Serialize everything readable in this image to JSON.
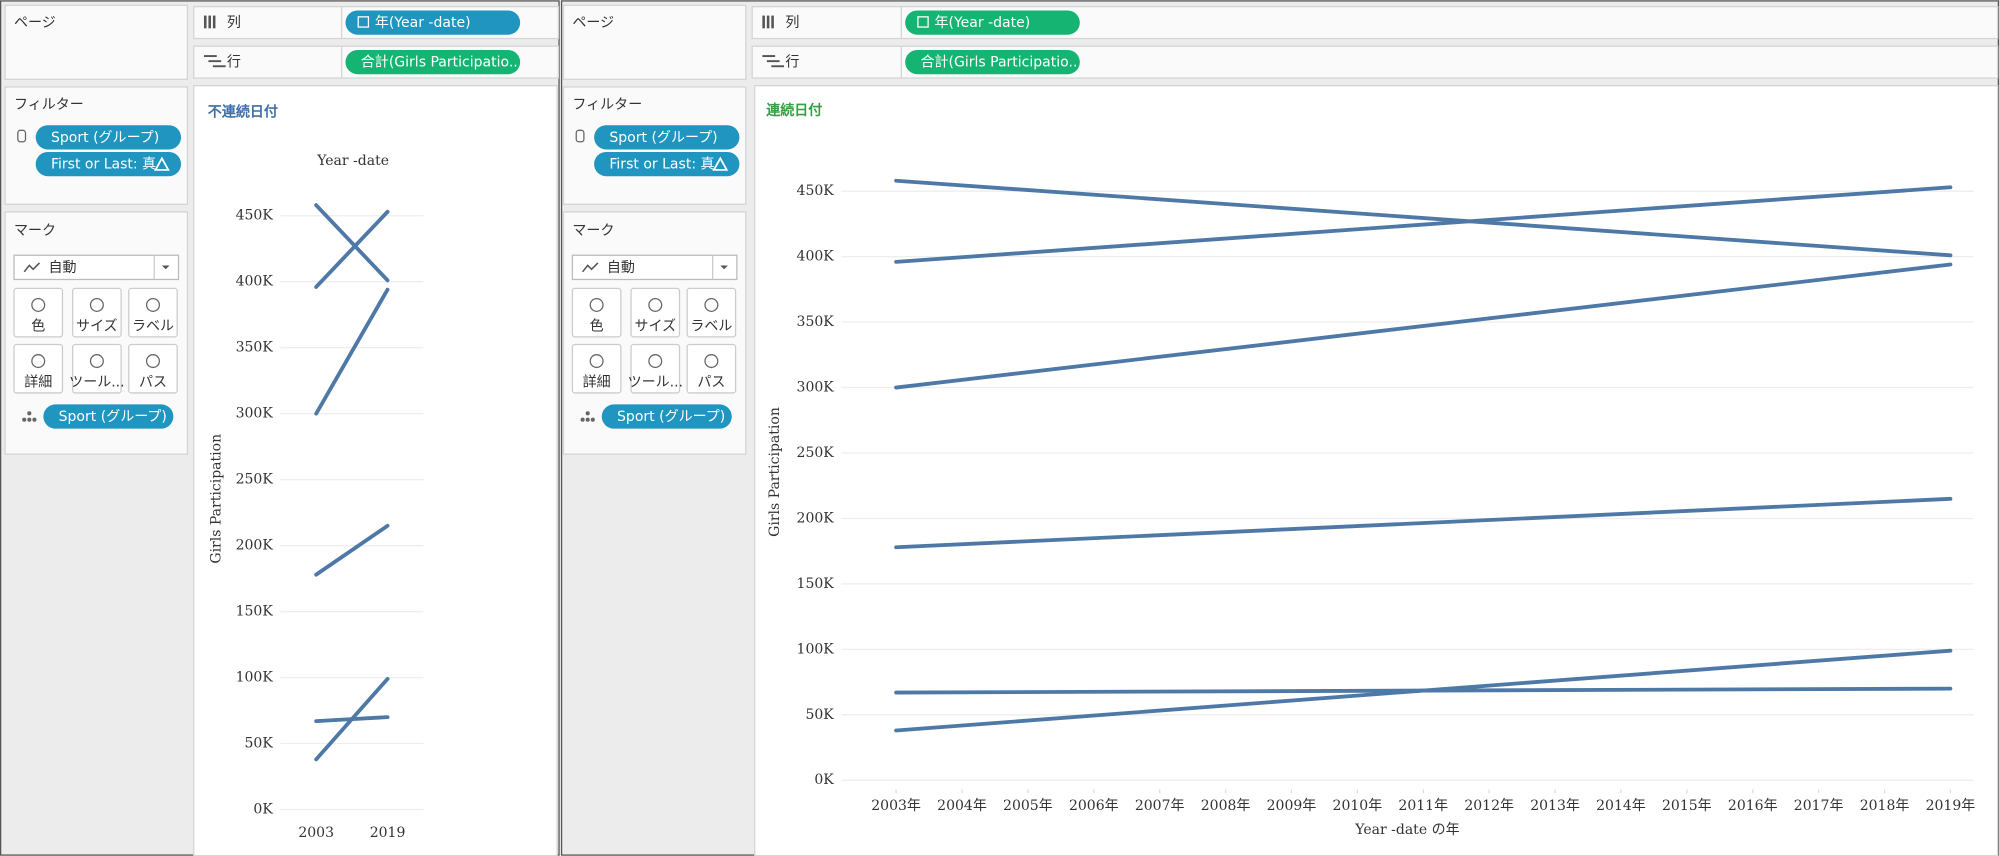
{
  "ui": {
    "panels": [
      {
        "pages": "ページ",
        "columns_label": "列",
        "column_pill": "年(Year -date)",
        "column_pill_color": "#1f95c0",
        "rows_label": "行",
        "row_pill": "合計(Girls Participatio..",
        "filters": "フィルター",
        "filter_pills": [
          "Sport (グループ)",
          "First or Last: 真"
        ],
        "marks": "マーク",
        "mark_type": "自動",
        "mark_buttons": [
          "色",
          "サイズ",
          "ラベル",
          "詳細",
          "ツール...",
          "パス"
        ],
        "detail_pill": "Sport (グループ)"
      },
      {
        "pages": "ページ",
        "columns_label": "列",
        "column_pill": "年(Year -date)",
        "column_pill_color": "#15b472",
        "rows_label": "行",
        "row_pill": "合計(Girls Participatio..",
        "filters": "フィルター",
        "filter_pills": [
          "Sport (グループ)",
          "First or Last: 真"
        ],
        "marks": "マーク",
        "mark_type": "自動",
        "mark_buttons": [
          "色",
          "サイズ",
          "ラベル",
          "詳細",
          "ツール...",
          "パス"
        ],
        "detail_pill": "Sport (グループ)"
      }
    ]
  },
  "chart_data": [
    {
      "type": "line",
      "title": "不連続日付",
      "title_color": "#3f6fa6",
      "xlabel": "Year -date",
      "ylabel": "Girls Participation",
      "categories": [
        "2003",
        "2019"
      ],
      "series": [
        {
          "color": "#4e79a7",
          "values": [
            458000,
            401000
          ]
        },
        {
          "color": "#4e79a7",
          "values": [
            396000,
            453000
          ]
        },
        {
          "color": "#4e79a7",
          "values": [
            300000,
            394000
          ]
        },
        {
          "color": "#4e79a7",
          "values": [
            178000,
            215000
          ]
        },
        {
          "color": "#4e79a7",
          "values": [
            67000,
            70000
          ]
        },
        {
          "color": "#4e79a7",
          "values": [
            38000,
            99000
          ]
        }
      ],
      "ylim": [
        -7000,
        478000
      ],
      "yticks": [
        {
          "value": 0,
          "label": "0K"
        },
        {
          "value": 50000,
          "label": "50K"
        },
        {
          "value": 100000,
          "label": "100K"
        },
        {
          "value": 150000,
          "label": "150K"
        },
        {
          "value": 200000,
          "label": "200K"
        },
        {
          "value": 250000,
          "label": "250K"
        },
        {
          "value": 300000,
          "label": "300K"
        },
        {
          "value": 350000,
          "label": "350K"
        },
        {
          "value": 400000,
          "label": "400K"
        },
        {
          "value": 450000,
          "label": "450K"
        }
      ],
      "grid": true
    },
    {
      "type": "line",
      "title": "連続日付",
      "title_color": "#34a046",
      "xlabel": "Year -date の年",
      "ylabel": "Girls Participation",
      "x": [
        2003,
        2019
      ],
      "series": [
        {
          "color": "#4e79a7",
          "values": [
            458000,
            401000
          ]
        },
        {
          "color": "#4e79a7",
          "values": [
            396000,
            453000
          ]
        },
        {
          "color": "#4e79a7",
          "values": [
            300000,
            394000
          ]
        },
        {
          "color": "#4e79a7",
          "values": [
            178000,
            215000
          ]
        },
        {
          "color": "#4e79a7",
          "values": [
            67000,
            70000
          ]
        },
        {
          "color": "#4e79a7",
          "values": [
            38000,
            99000
          ]
        }
      ],
      "xlim": [
        2002.17,
        2019.35
      ],
      "xticks": [
        {
          "value": 2003,
          "label": "2003年"
        },
        {
          "value": 2004,
          "label": "2004年"
        },
        {
          "value": 2005,
          "label": "2005年"
        },
        {
          "value": 2006,
          "label": "2006年"
        },
        {
          "value": 2007,
          "label": "2007年"
        },
        {
          "value": 2008,
          "label": "2008年"
        },
        {
          "value": 2009,
          "label": "2009年"
        },
        {
          "value": 2010,
          "label": "2010年"
        },
        {
          "value": 2011,
          "label": "2011年"
        },
        {
          "value": 2012,
          "label": "2012年"
        },
        {
          "value": 2013,
          "label": "2013年"
        },
        {
          "value": 2014,
          "label": "2014年"
        },
        {
          "value": 2015,
          "label": "2015年"
        },
        {
          "value": 2016,
          "label": "2016年"
        },
        {
          "value": 2017,
          "label": "2017年"
        },
        {
          "value": 2018,
          "label": "2018年"
        },
        {
          "value": 2019,
          "label": "2019年"
        }
      ],
      "ylim": [
        -7000,
        478000
      ],
      "yticks": [
        {
          "value": 0,
          "label": "0K"
        },
        {
          "value": 50000,
          "label": "50K"
        },
        {
          "value": 100000,
          "label": "100K"
        },
        {
          "value": 150000,
          "label": "150K"
        },
        {
          "value": 200000,
          "label": "200K"
        },
        {
          "value": 250000,
          "label": "250K"
        },
        {
          "value": 300000,
          "label": "300K"
        },
        {
          "value": 350000,
          "label": "350K"
        },
        {
          "value": 400000,
          "label": "400K"
        },
        {
          "value": 450000,
          "label": "450K"
        }
      ],
      "grid": true
    }
  ]
}
